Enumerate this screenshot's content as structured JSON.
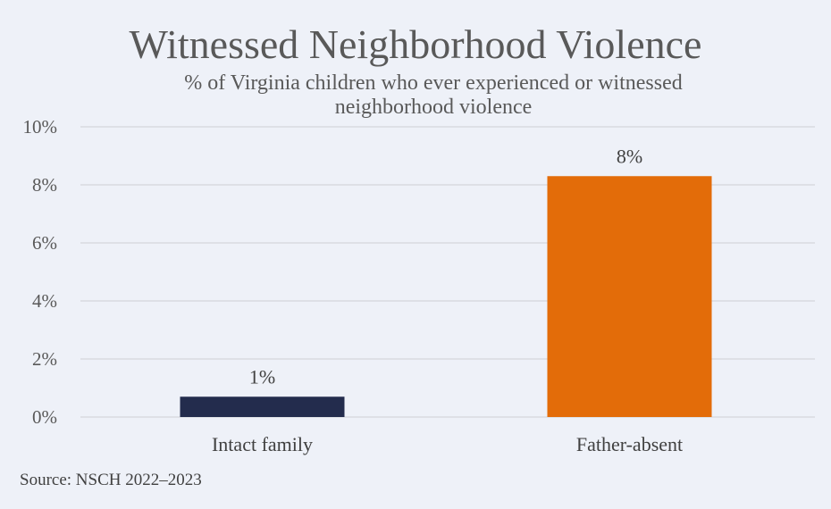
{
  "chart_data": {
    "type": "bar",
    "title": "Witnessed Neighborhood Violence",
    "subtitle": "% of Virginia children who ever experienced or witnessed neighborhood violence",
    "categories": [
      "Intact family",
      "Father-absent"
    ],
    "values": [
      0.7,
      8.3
    ],
    "data_labels": [
      "1%",
      "8%"
    ],
    "colors": [
      "#232c4d",
      "#e36c09"
    ],
    "ylim": [
      0,
      10
    ],
    "yticks": [
      0,
      2,
      4,
      6,
      8,
      10
    ],
    "ytick_labels": [
      "0%",
      "2%",
      "4%",
      "6%",
      "8%",
      "10%"
    ],
    "xlabel": "",
    "ylabel": "",
    "grid": true,
    "source": "Source: NSCH 2022–2023"
  }
}
